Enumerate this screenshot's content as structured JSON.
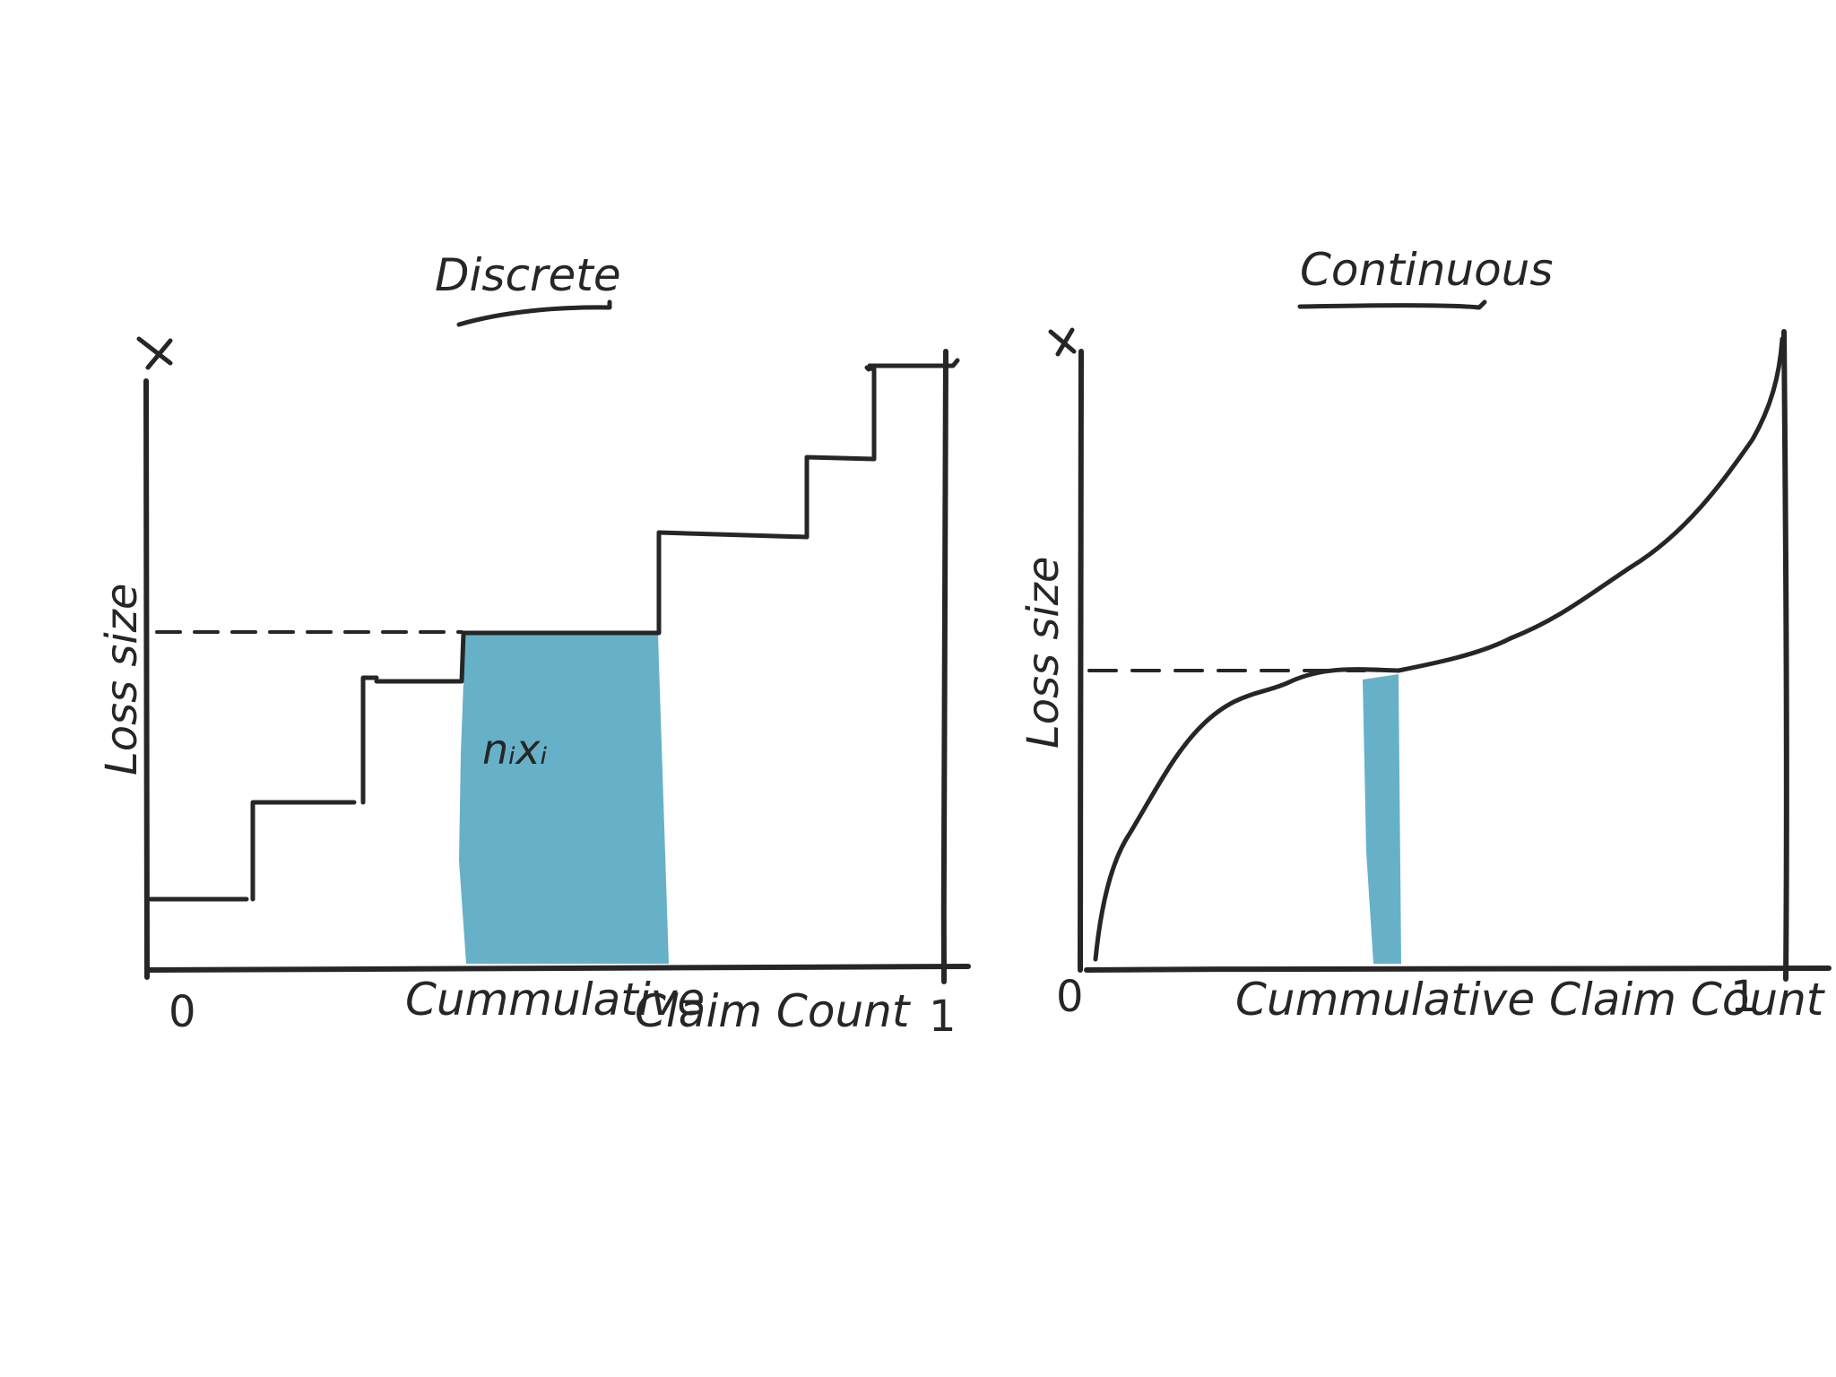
{
  "colors": {
    "ink": "#262626",
    "highlight": "#67B1C8",
    "background": "#ffffff"
  },
  "discrete": {
    "title": "Discrete",
    "y_axis_top": "X",
    "y_label": "Loss size",
    "x_label_1": "Cummulative",
    "x_label_2": "Claim Count",
    "tick_start": "0",
    "tick_end": "1",
    "annotation": "nᵢxᵢ"
  },
  "continuous": {
    "title": "Continuous",
    "y_axis_top": "X",
    "y_label": "Loss size",
    "x_label": "Cummulative Claim Count",
    "tick_start": "0",
    "tick_end": "1"
  }
}
